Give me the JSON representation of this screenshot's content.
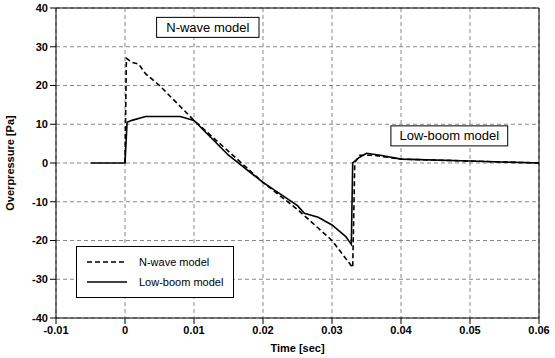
{
  "chart_data": {
    "type": "line",
    "x_label": "Time [sec]",
    "y_label": "Overpressure [Pa]",
    "xlim": [
      -0.01,
      0.06
    ],
    "xticks": [
      -0.01,
      0,
      0.01,
      0.02,
      0.03,
      0.04,
      0.05,
      0.06
    ],
    "ylim": [
      -40,
      40
    ],
    "yticks": [
      -40,
      -30,
      -20,
      -10,
      0,
      10,
      20,
      30,
      40
    ],
    "grid": true,
    "legend": "lower left",
    "series": [
      {
        "name": "N-wave model",
        "color": "#000000",
        "line_style": "dashed",
        "x": [
          0,
          0.0002,
          0.001,
          0.002,
          0.003,
          0.005,
          0.01,
          0.015,
          0.02,
          0.025,
          0.03,
          0.033,
          0.0333,
          0.034,
          0.036,
          0.04,
          0.05,
          0.06
        ],
        "values": [
          0,
          27,
          26,
          25.5,
          23,
          20,
          11,
          3,
          -5,
          -12,
          -20,
          -27,
          0,
          2,
          2,
          1,
          0.5,
          0
        ]
      },
      {
        "name": "Low-boom model",
        "color": "#000000",
        "line_style": "solid",
        "x": [
          -0.005,
          0,
          0.0003,
          0.001,
          0.003,
          0.008,
          0.01,
          0.015,
          0.02,
          0.025,
          0.026,
          0.027,
          0.028,
          0.03,
          0.032,
          0.0328,
          0.033,
          0.034,
          0.035,
          0.037,
          0.04,
          0.05,
          0.06
        ],
        "values": [
          0,
          0,
          10.5,
          11,
          12,
          12,
          11,
          2,
          -5,
          -11,
          -13,
          -13.5,
          -14,
          -16,
          -19,
          -21,
          0,
          1.5,
          2.5,
          2,
          1,
          0.5,
          0
        ]
      }
    ],
    "annotations": [
      {
        "text": "N-wave model",
        "x": 0.012,
        "y": 35
      },
      {
        "text": "Low-boom model",
        "x": 0.047,
        "y": 7
      }
    ]
  }
}
